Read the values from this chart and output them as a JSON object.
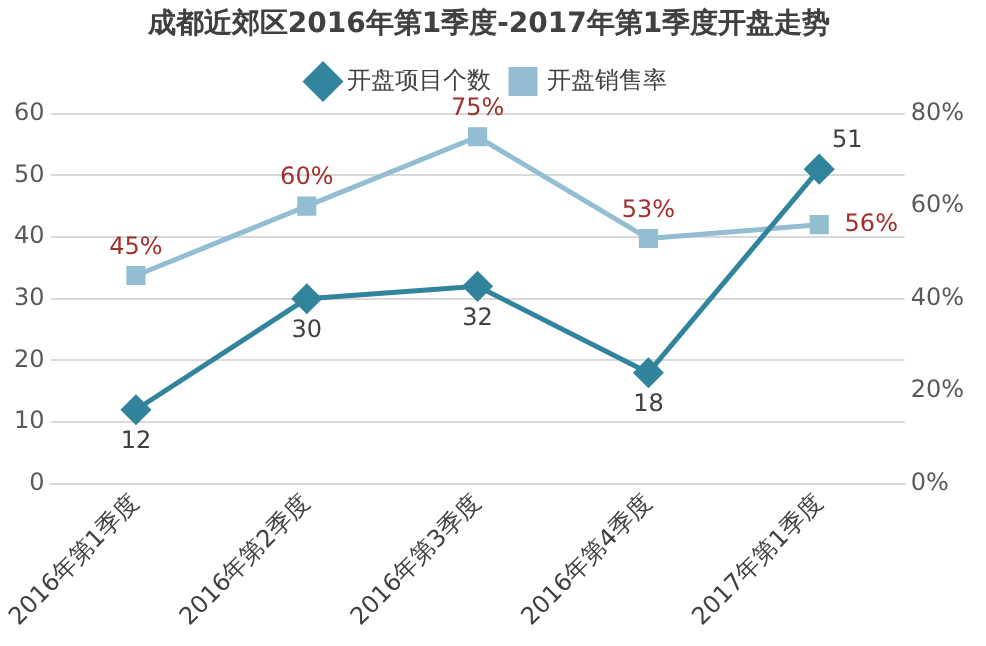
{
  "chart_data": {
    "type": "line",
    "title": "成都近郊区2016年第1季度-2017年第1季度开盘走势",
    "categories": [
      "2016年第1季度",
      "2016年第2季度",
      "2016年第3季度",
      "2016年第4季度",
      "2017年第1季度"
    ],
    "series": [
      {
        "name": "开盘项目个数",
        "color": "#31849b",
        "marker": "diamond",
        "values": [
          12,
          30,
          32,
          18,
          51
        ],
        "value_labels": [
          "12",
          "30",
          "32",
          "18",
          "51"
        ]
      },
      {
        "name": "开盘销售率",
        "color": "#93bdd1",
        "marker": "square",
        "axis": "y2",
        "values": [
          45,
          60,
          75,
          53,
          56
        ],
        "value_labels": [
          "45%",
          "60%",
          "75%",
          "53%",
          "56%"
        ]
      }
    ],
    "ylim": [
      0,
      60
    ],
    "yticks": [
      0,
      10,
      20,
      30,
      40,
      50,
      60
    ],
    "y2lim": [
      0,
      80
    ],
    "y2ticks": [
      {
        "value": 0,
        "label": "0%"
      },
      {
        "value": 20,
        "label": "20%"
      },
      {
        "value": 40,
        "label": "40%"
      },
      {
        "value": 60,
        "label": "60%"
      },
      {
        "value": 80,
        "label": "80%"
      }
    ],
    "grid": "y",
    "legend": "top",
    "line_style": "solid"
  }
}
